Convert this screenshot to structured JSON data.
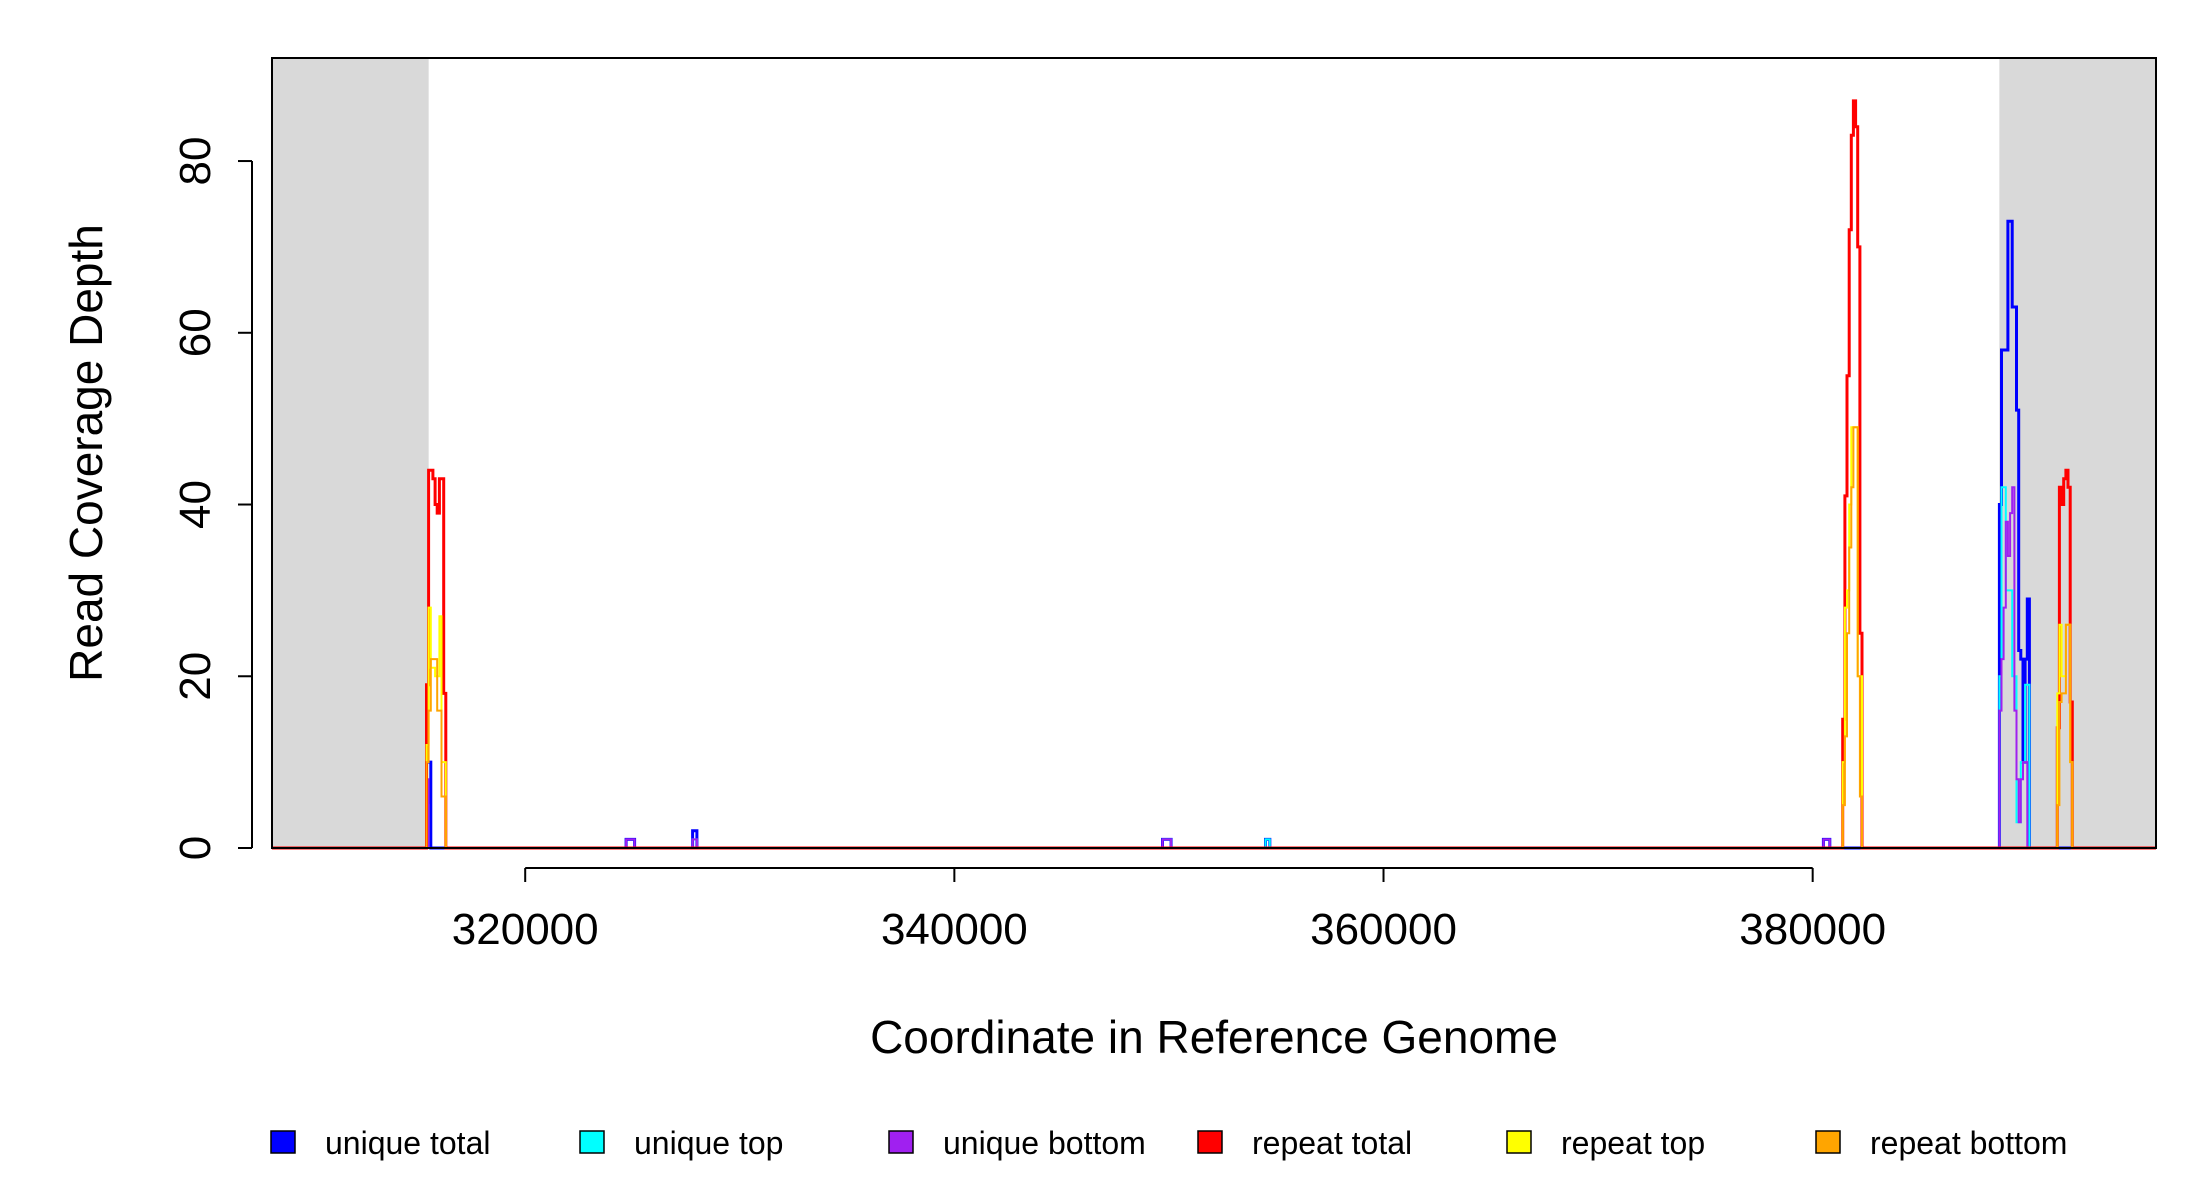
{
  "chart_data": {
    "type": "line",
    "step": true,
    "xlabel": "Coordinate in Reference Genome",
    "ylabel": "Read Coverage Depth",
    "xlim": [
      308200,
      396000
    ],
    "ylim": [
      0,
      92
    ],
    "x_ticks": [
      320000,
      340000,
      360000,
      380000
    ],
    "y_ticks": [
      0,
      20,
      40,
      60,
      80
    ],
    "shaded_regions": [
      [
        308200,
        315500
      ],
      [
        388700,
        396000
      ]
    ],
    "grid": false,
    "legend_position": "bottom",
    "series": [
      {
        "name": "unique total",
        "color": "#0000ff",
        "points": [
          [
            308200,
            0
          ],
          [
            315400,
            0
          ],
          [
            315400,
            10
          ],
          [
            315600,
            10
          ],
          [
            315600,
            0
          ],
          [
            324700,
            0
          ],
          [
            324700,
            1
          ],
          [
            325100,
            1
          ],
          [
            325100,
            0
          ],
          [
            327800,
            0
          ],
          [
            327800,
            2
          ],
          [
            328000,
            2
          ],
          [
            328000,
            0
          ],
          [
            349700,
            0
          ],
          [
            349700,
            1
          ],
          [
            350100,
            1
          ],
          [
            350100,
            0
          ],
          [
            354500,
            0
          ],
          [
            354500,
            1
          ],
          [
            354700,
            1
          ],
          [
            354700,
            0
          ],
          [
            380500,
            0
          ],
          [
            380500,
            1
          ],
          [
            380800,
            1
          ],
          [
            380800,
            0
          ],
          [
            388700,
            0
          ],
          [
            388700,
            40
          ],
          [
            388800,
            40
          ],
          [
            388800,
            58
          ],
          [
            389100,
            58
          ],
          [
            389100,
            73
          ],
          [
            389300,
            73
          ],
          [
            389300,
            63
          ],
          [
            389500,
            63
          ],
          [
            389500,
            51
          ],
          [
            389600,
            51
          ],
          [
            389600,
            23
          ],
          [
            389700,
            23
          ],
          [
            389700,
            22
          ],
          [
            389800,
            22
          ],
          [
            389800,
            10
          ],
          [
            389900,
            10
          ],
          [
            389900,
            22
          ],
          [
            390000,
            22
          ],
          [
            390000,
            29
          ],
          [
            390100,
            29
          ],
          [
            390100,
            0
          ],
          [
            396000,
            0
          ]
        ]
      },
      {
        "name": "unique top",
        "color": "#00ffff",
        "points": [
          [
            308200,
            0
          ],
          [
            315400,
            0
          ],
          [
            315400,
            5
          ],
          [
            315500,
            5
          ],
          [
            315500,
            0
          ],
          [
            327800,
            0
          ],
          [
            327800,
            1
          ],
          [
            328000,
            1
          ],
          [
            328000,
            0
          ],
          [
            349700,
            0
          ],
          [
            349700,
            1
          ],
          [
            350100,
            1
          ],
          [
            350100,
            0
          ],
          [
            354500,
            0
          ],
          [
            354500,
            1
          ],
          [
            354700,
            1
          ],
          [
            354700,
            0
          ],
          [
            388700,
            0
          ],
          [
            388700,
            20
          ],
          [
            388800,
            20
          ],
          [
            388800,
            42
          ],
          [
            389000,
            42
          ],
          [
            389000,
            30
          ],
          [
            389300,
            30
          ],
          [
            389300,
            20
          ],
          [
            389500,
            20
          ],
          [
            389500,
            3
          ],
          [
            389700,
            3
          ],
          [
            389700,
            10
          ],
          [
            389900,
            10
          ],
          [
            389900,
            19
          ],
          [
            390100,
            19
          ],
          [
            390100,
            0
          ],
          [
            396000,
            0
          ]
        ]
      },
      {
        "name": "unique bottom",
        "color": "#a020f0",
        "points": [
          [
            308200,
            0
          ],
          [
            315400,
            0
          ],
          [
            315400,
            8
          ],
          [
            315500,
            8
          ],
          [
            315500,
            0
          ],
          [
            324700,
            0
          ],
          [
            324700,
            1
          ],
          [
            325100,
            1
          ],
          [
            325100,
            0
          ],
          [
            327800,
            0
          ],
          [
            327800,
            1
          ],
          [
            328000,
            1
          ],
          [
            328000,
            0
          ],
          [
            349700,
            0
          ],
          [
            349700,
            1
          ],
          [
            350100,
            1
          ],
          [
            350100,
            0
          ],
          [
            380500,
            0
          ],
          [
            380500,
            1
          ],
          [
            380800,
            1
          ],
          [
            380800,
            0
          ],
          [
            388700,
            0
          ],
          [
            388700,
            16
          ],
          [
            388800,
            16
          ],
          [
            388800,
            22
          ],
          [
            388900,
            22
          ],
          [
            388900,
            28
          ],
          [
            389000,
            28
          ],
          [
            389000,
            38
          ],
          [
            389100,
            38
          ],
          [
            389100,
            34
          ],
          [
            389200,
            34
          ],
          [
            389200,
            39
          ],
          [
            389300,
            39
          ],
          [
            389300,
            42
          ],
          [
            389400,
            42
          ],
          [
            389400,
            16
          ],
          [
            389500,
            16
          ],
          [
            389500,
            8
          ],
          [
            389600,
            8
          ],
          [
            389600,
            3
          ],
          [
            389700,
            3
          ],
          [
            389700,
            8
          ],
          [
            389800,
            8
          ],
          [
            389800,
            10
          ],
          [
            390000,
            10
          ],
          [
            390000,
            0
          ],
          [
            396000,
            0
          ]
        ]
      },
      {
        "name": "repeat total",
        "color": "#ff0000",
        "points": [
          [
            308200,
            0
          ],
          [
            315400,
            0
          ],
          [
            315400,
            19
          ],
          [
            315500,
            19
          ],
          [
            315500,
            44
          ],
          [
            315700,
            44
          ],
          [
            315700,
            43
          ],
          [
            315800,
            43
          ],
          [
            315800,
            40
          ],
          [
            315900,
            40
          ],
          [
            315900,
            39
          ],
          [
            316000,
            39
          ],
          [
            316000,
            43
          ],
          [
            316200,
            43
          ],
          [
            316200,
            18
          ],
          [
            316300,
            18
          ],
          [
            316300,
            0
          ],
          [
            381400,
            0
          ],
          [
            381400,
            15
          ],
          [
            381500,
            15
          ],
          [
            381500,
            41
          ],
          [
            381600,
            41
          ],
          [
            381600,
            55
          ],
          [
            381700,
            55
          ],
          [
            381700,
            72
          ],
          [
            381800,
            72
          ],
          [
            381800,
            83
          ],
          [
            381900,
            83
          ],
          [
            381900,
            87
          ],
          [
            382000,
            87
          ],
          [
            382000,
            84
          ],
          [
            382100,
            84
          ],
          [
            382100,
            70
          ],
          [
            382200,
            70
          ],
          [
            382200,
            25
          ],
          [
            382300,
            25
          ],
          [
            382300,
            0
          ],
          [
            391400,
            0
          ],
          [
            391400,
            14
          ],
          [
            391500,
            14
          ],
          [
            391500,
            42
          ],
          [
            391600,
            42
          ],
          [
            391600,
            40
          ],
          [
            391700,
            40
          ],
          [
            391700,
            43
          ],
          [
            391800,
            43
          ],
          [
            391800,
            44
          ],
          [
            391900,
            44
          ],
          [
            391900,
            42
          ],
          [
            392000,
            42
          ],
          [
            392000,
            17
          ],
          [
            392100,
            17
          ],
          [
            392100,
            0
          ],
          [
            396000,
            0
          ]
        ]
      },
      {
        "name": "repeat top",
        "color": "#ffff00",
        "points": [
          [
            308200,
            0
          ],
          [
            315400,
            0
          ],
          [
            315400,
            12
          ],
          [
            315500,
            12
          ],
          [
            315500,
            28
          ],
          [
            315600,
            28
          ],
          [
            315600,
            21
          ],
          [
            315800,
            21
          ],
          [
            315800,
            20
          ],
          [
            316000,
            20
          ],
          [
            316000,
            27
          ],
          [
            316100,
            27
          ],
          [
            316100,
            10
          ],
          [
            316300,
            10
          ],
          [
            316300,
            0
          ],
          [
            381400,
            0
          ],
          [
            381400,
            10
          ],
          [
            381500,
            10
          ],
          [
            381500,
            28
          ],
          [
            381600,
            28
          ],
          [
            381600,
            30
          ],
          [
            381700,
            30
          ],
          [
            381700,
            40
          ],
          [
            381800,
            40
          ],
          [
            381800,
            49
          ],
          [
            382100,
            49
          ],
          [
            382100,
            20
          ],
          [
            382300,
            20
          ],
          [
            382300,
            0
          ],
          [
            391400,
            0
          ],
          [
            391400,
            18
          ],
          [
            391500,
            18
          ],
          [
            391500,
            26
          ],
          [
            391600,
            26
          ],
          [
            391600,
            20
          ],
          [
            391800,
            20
          ],
          [
            391800,
            26
          ],
          [
            392000,
            26
          ],
          [
            392000,
            10
          ],
          [
            392100,
            10
          ],
          [
            392100,
            0
          ],
          [
            396000,
            0
          ]
        ]
      },
      {
        "name": "repeat bottom",
        "color": "#ffa500",
        "points": [
          [
            308200,
            0
          ],
          [
            315400,
            0
          ],
          [
            315400,
            10
          ],
          [
            315500,
            10
          ],
          [
            315500,
            16
          ],
          [
            315600,
            16
          ],
          [
            315600,
            22
          ],
          [
            315900,
            22
          ],
          [
            315900,
            16
          ],
          [
            316100,
            16
          ],
          [
            316100,
            6
          ],
          [
            316300,
            6
          ],
          [
            316300,
            0
          ],
          [
            381400,
            0
          ],
          [
            381400,
            5
          ],
          [
            381500,
            5
          ],
          [
            381500,
            13
          ],
          [
            381600,
            13
          ],
          [
            381600,
            25
          ],
          [
            381700,
            25
          ],
          [
            381700,
            35
          ],
          [
            381800,
            35
          ],
          [
            381800,
            42
          ],
          [
            381900,
            42
          ],
          [
            381900,
            49
          ],
          [
            382100,
            49
          ],
          [
            382100,
            20
          ],
          [
            382200,
            20
          ],
          [
            382200,
            6
          ],
          [
            382300,
            6
          ],
          [
            382300,
            0
          ],
          [
            391400,
            0
          ],
          [
            391400,
            5
          ],
          [
            391500,
            5
          ],
          [
            391500,
            17
          ],
          [
            391600,
            17
          ],
          [
            391600,
            18
          ],
          [
            391800,
            18
          ],
          [
            391800,
            26
          ],
          [
            392000,
            26
          ],
          [
            392000,
            10
          ],
          [
            392100,
            10
          ],
          [
            392100,
            0
          ],
          [
            396000,
            0
          ]
        ]
      }
    ]
  }
}
